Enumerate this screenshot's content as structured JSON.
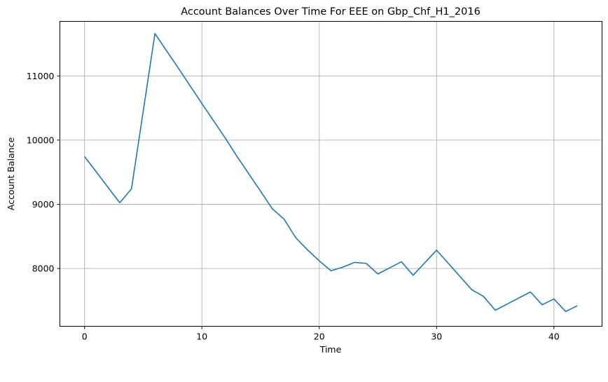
{
  "chart_data": {
    "type": "line",
    "title": "Account Balances Over Time For EEE on Gbp_Chf_H1_2016",
    "xlabel": "Time",
    "ylabel": "Account Balance",
    "xlim": [
      -2.1,
      44.1
    ],
    "ylim": [
      7100,
      11850
    ],
    "xticks": [
      0,
      10,
      20,
      30,
      40
    ],
    "yticks": [
      8000,
      9000,
      10000,
      11000
    ],
    "grid": true,
    "legend": "none",
    "series": [
      {
        "color": "#1f77b4",
        "x": [
          0,
          1,
          2,
          3,
          4,
          5,
          6,
          7,
          8,
          9,
          10,
          11,
          12,
          13,
          14,
          15,
          16,
          17,
          18,
          19,
          20,
          21,
          22,
          23,
          24,
          25,
          26,
          27,
          28,
          29,
          30,
          31,
          32,
          33,
          34,
          35,
          36,
          37,
          38,
          39,
          40,
          41,
          42
        ],
        "y": [
          9745,
          9505,
          9265,
          9025,
          9240,
          10450,
          11660,
          11390,
          11120,
          10845,
          10570,
          10300,
          10030,
          9745,
          9475,
          9205,
          8930,
          8770,
          8480,
          8290,
          8120,
          7965,
          8020,
          8095,
          8080,
          7915,
          8010,
          8105,
          7895,
          8090,
          8285,
          8080,
          7875,
          7670,
          7565,
          7350,
          7445,
          7540,
          7635,
          7435,
          7525,
          7330,
          7420
        ]
      }
    ]
  }
}
